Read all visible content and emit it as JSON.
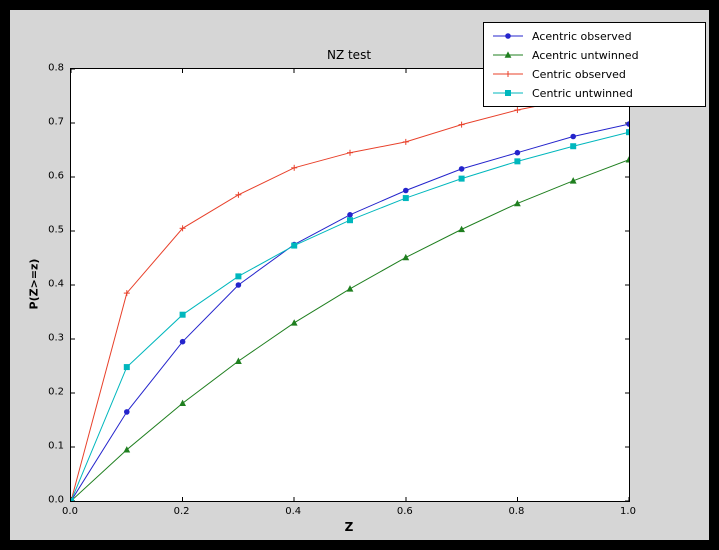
{
  "chart_data": {
    "type": "line",
    "title": "NZ test",
    "xlabel": "Z",
    "ylabel": "P(Z>=z)",
    "xlim": [
      0.0,
      1.0
    ],
    "ylim": [
      0.0,
      0.8
    ],
    "grid": false,
    "legend_position": "upper right",
    "xticks": [
      0.0,
      0.2,
      0.4,
      0.6,
      0.8,
      1.0
    ],
    "xtick_labels": [
      "0.0",
      "0.2",
      "0.4",
      "0.6",
      "0.8",
      "1.0"
    ],
    "yticks": [
      0.0,
      0.1,
      0.2,
      0.3,
      0.4,
      0.5,
      0.6,
      0.7,
      0.8
    ],
    "ytick_labels": [
      "0.0",
      "0.1",
      "0.2",
      "0.3",
      "0.4",
      "0.5",
      "0.6",
      "0.7",
      "0.8"
    ],
    "x": [
      0.0,
      0.1,
      0.2,
      0.3,
      0.4,
      0.5,
      0.6,
      0.7,
      0.8,
      0.9,
      1.0
    ],
    "series": [
      {
        "name": "Acentric observed",
        "color": "#2424cc",
        "marker": "circle",
        "values": [
          0.0,
          0.165,
          0.295,
          0.4,
          0.475,
          0.53,
          0.575,
          0.615,
          0.645,
          0.675,
          0.698
        ]
      },
      {
        "name": "Acentric untwinned",
        "color": "#1f7f1f",
        "marker": "triangle",
        "values": [
          0.0,
          0.095,
          0.181,
          0.259,
          0.33,
          0.393,
          0.451,
          0.503,
          0.551,
          0.593,
          0.632
        ]
      },
      {
        "name": "Centric observed",
        "color": "#e8402a",
        "marker": "plus",
        "values": [
          0.0,
          0.385,
          0.505,
          0.567,
          0.617,
          0.645,
          0.665,
          0.697,
          0.724,
          0.745,
          0.758
        ]
      },
      {
        "name": "Centric untwinned",
        "color": "#00b7bd",
        "marker": "square",
        "values": [
          0.0,
          0.248,
          0.345,
          0.416,
          0.473,
          0.52,
          0.561,
          0.597,
          0.629,
          0.657,
          0.683
        ]
      }
    ]
  },
  "colors": {
    "window_bg": "#000000",
    "figure_bg": "#d6d6d6",
    "axes_bg": "#ffffff",
    "legend_bg": "#ffffff",
    "legend_border": "#000000",
    "tick_color": "#000000"
  }
}
